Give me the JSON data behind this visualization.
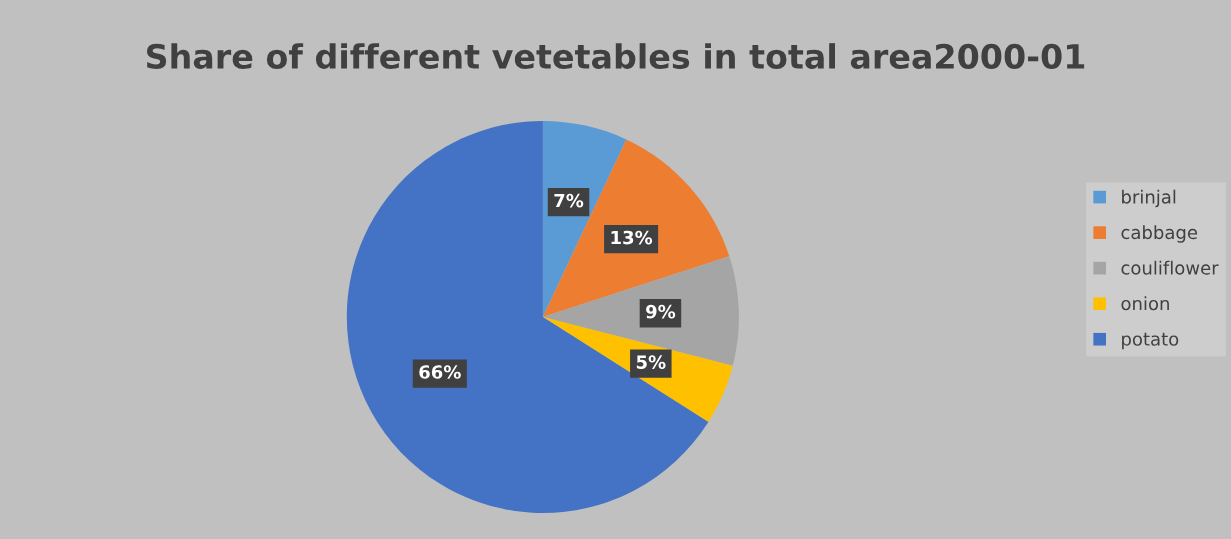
{
  "chart_data": {
    "type": "pie",
    "title": "Share of different vetetables in total area2000-01",
    "categories": [
      "brinjal",
      "cabbage",
      "couliflower",
      "onion",
      "potato"
    ],
    "values": [
      7,
      13,
      9,
      5,
      66
    ],
    "colors": [
      "#5b9bd5",
      "#ed7d31",
      "#a5a5a5",
      "#ffc000",
      "#4472c4"
    ],
    "value_labels": [
      "7%",
      "13%",
      "9%",
      "5%",
      "66%"
    ],
    "legend": "right"
  }
}
